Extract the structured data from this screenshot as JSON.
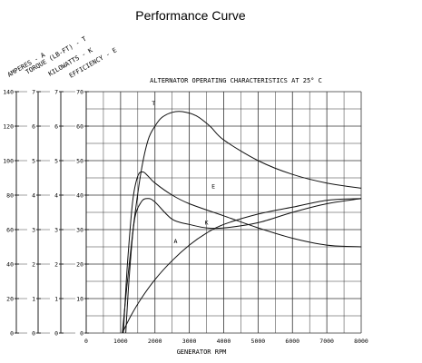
{
  "page": {
    "title": "Performance Curve"
  },
  "chart_data": {
    "type": "line",
    "title": "ALTERNATOR OPERATING CHARACTERISTICS AT 25° C",
    "xlabel": "GENERATOR RPM",
    "xlim": [
      0,
      8000
    ],
    "x_ticks": [
      "0",
      "1000",
      "2000",
      "3000",
      "4000",
      "5000",
      "6000",
      "7000",
      "8000"
    ],
    "y_axes": [
      {
        "label": "AMPERES - A",
        "range": [
          0,
          140
        ],
        "ticks": [
          "0",
          "20",
          "40",
          "60",
          "80",
          "100",
          "120",
          "140"
        ]
      },
      {
        "label": "TORQUE (LB-FT) - T",
        "range": [
          0,
          7
        ],
        "ticks": [
          "0",
          "1",
          "2",
          "3",
          "4",
          "5",
          "6",
          "7"
        ]
      },
      {
        "label": "KILOWATTS - K",
        "range": [
          0,
          7
        ],
        "ticks": [
          "0",
          "1",
          "2",
          "3",
          "4",
          "5",
          "6",
          "7"
        ]
      },
      {
        "label": "EFFICIENCY - E",
        "range": [
          0,
          70
        ],
        "ticks": [
          "0",
          "10",
          "20",
          "30",
          "40",
          "50",
          "60",
          "70"
        ]
      }
    ],
    "grid": true,
    "series": [
      {
        "name": "T",
        "axis": "TORQUE (LB-FT) - T",
        "x": [
          1050,
          1200,
          1400,
          1600,
          1800,
          2000,
          2200,
          2500,
          2800,
          3200,
          3600,
          4000,
          5000,
          6000,
          7000,
          8000
        ],
        "y": [
          0,
          1.5,
          3.3,
          4.7,
          5.6,
          6.0,
          6.25,
          6.4,
          6.42,
          6.3,
          6.0,
          5.6,
          5.0,
          4.6,
          4.35,
          4.2
        ]
      },
      {
        "name": "E",
        "axis": "EFFICIENCY - E",
        "x": [
          1080,
          1200,
          1350,
          1500,
          1650,
          1800,
          2000,
          2500,
          3000,
          4000,
          5000,
          6000,
          7000,
          8000
        ],
        "y": [
          0,
          20,
          38,
          45.5,
          46.7,
          45.5,
          43.5,
          40,
          37.5,
          34,
          30.5,
          27.5,
          25.5,
          25
        ]
      },
      {
        "name": "A",
        "axis": "AMPERES - A",
        "x": [
          1150,
          1250,
          1400,
          1600,
          1800,
          2000,
          2500,
          3000,
          3500,
          4000,
          5000,
          6000,
          7000,
          8000
        ],
        "y": [
          0,
          32,
          65,
          76,
          78,
          76,
          66,
          63,
          61,
          61,
          64,
          70,
          75,
          78
        ]
      },
      {
        "name": "K",
        "axis": "KILOWATTS - K",
        "x": [
          1050,
          1300,
          1600,
          2000,
          2500,
          3000,
          3500,
          4000,
          5000,
          6000,
          7000,
          8000
        ],
        "y": [
          0,
          0.5,
          1.0,
          1.55,
          2.1,
          2.55,
          2.9,
          3.15,
          3.45,
          3.65,
          3.85,
          3.9
        ]
      }
    ]
  }
}
